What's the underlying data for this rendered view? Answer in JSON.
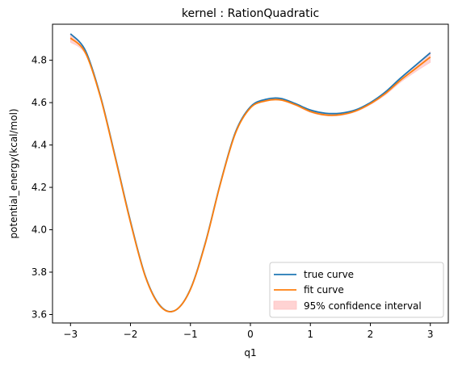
{
  "chart_data": {
    "type": "line",
    "title": "kernel : RationQuadratic",
    "xlabel": "q1",
    "ylabel": "potential_energy(kcal/mol)",
    "xlim": [
      -3.3,
      3.3
    ],
    "ylim": [
      3.56,
      4.97
    ],
    "x_ticks": [
      -3,
      -2,
      -1,
      0,
      1,
      2,
      3
    ],
    "x_tick_labels": [
      "−3",
      "−2",
      "−1",
      "0",
      "1",
      "2",
      "3"
    ],
    "y_ticks": [
      3.6,
      3.8,
      4.0,
      4.2,
      4.4,
      4.6,
      4.8
    ],
    "y_tick_labels": [
      "3.6",
      "3.8",
      "4.0",
      "4.2",
      "4.4",
      "4.6",
      "4.8"
    ],
    "grid": false,
    "legend_position": "lower-right",
    "series": [
      {
        "name": "true curve",
        "color": "#1f77b4",
        "style": "line",
        "x": [
          -3.0,
          -2.75,
          -2.5,
          -2.25,
          -2.0,
          -1.75,
          -1.5,
          -1.25,
          -1.0,
          -0.75,
          -0.5,
          -0.25,
          0.0,
          0.25,
          0.5,
          0.75,
          1.0,
          1.25,
          1.5,
          1.75,
          2.0,
          2.25,
          2.5,
          2.75,
          3.0
        ],
        "y": [
          4.925,
          4.845,
          4.63,
          4.34,
          4.04,
          3.78,
          3.64,
          3.62,
          3.72,
          3.94,
          4.22,
          4.46,
          4.58,
          4.615,
          4.62,
          4.595,
          4.565,
          4.55,
          4.55,
          4.565,
          4.6,
          4.65,
          4.715,
          4.775,
          4.835
        ]
      },
      {
        "name": "fit curve",
        "color": "#ff7f0e",
        "style": "line",
        "x": [
          -3.0,
          -2.75,
          -2.5,
          -2.25,
          -2.0,
          -1.75,
          -1.5,
          -1.25,
          -1.0,
          -0.75,
          -0.5,
          -0.25,
          0.0,
          0.25,
          0.5,
          0.75,
          1.0,
          1.25,
          1.5,
          1.75,
          2.0,
          2.25,
          2.5,
          2.75,
          3.0
        ],
        "y": [
          4.905,
          4.835,
          4.625,
          4.335,
          4.035,
          3.777,
          3.638,
          3.62,
          3.718,
          3.937,
          4.217,
          4.455,
          4.575,
          4.608,
          4.613,
          4.59,
          4.558,
          4.542,
          4.543,
          4.56,
          4.595,
          4.643,
          4.705,
          4.76,
          4.815
        ]
      },
      {
        "name": "95% confidence interval",
        "color": "#ffc4c4",
        "style": "band",
        "x": [
          -3.0,
          -2.75,
          -2.5,
          -2.25,
          -2.0,
          -1.75,
          -1.5,
          -1.25,
          -1.0,
          -0.75,
          -0.5,
          -0.25,
          0.0,
          0.25,
          0.5,
          0.75,
          1.0,
          1.25,
          1.5,
          1.75,
          2.0,
          2.25,
          2.5,
          2.75,
          3.0
        ],
        "lower": [
          4.885,
          4.827,
          4.62,
          4.332,
          4.032,
          3.775,
          3.636,
          3.618,
          3.716,
          3.935,
          4.215,
          4.453,
          4.573,
          4.605,
          4.61,
          4.586,
          4.554,
          4.538,
          4.539,
          4.556,
          4.59,
          4.636,
          4.695,
          4.745,
          4.79
        ],
        "upper": [
          4.92,
          4.843,
          4.63,
          4.338,
          4.038,
          3.779,
          3.64,
          3.622,
          3.72,
          3.939,
          4.219,
          4.457,
          4.577,
          4.611,
          4.616,
          4.594,
          4.562,
          4.546,
          4.547,
          4.564,
          4.6,
          4.65,
          4.715,
          4.775,
          4.84
        ]
      }
    ]
  }
}
